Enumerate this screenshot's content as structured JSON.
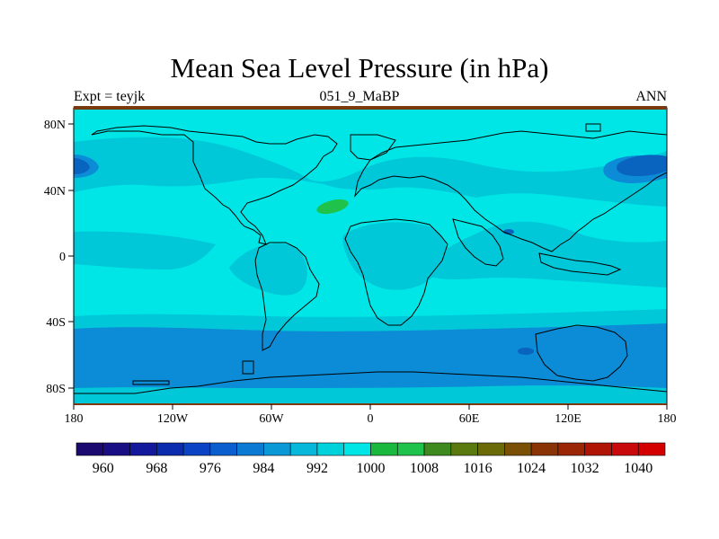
{
  "title": "Mean Sea Level Pressure (in hPa)",
  "subtitle_left": "Expt = teyjk",
  "subtitle_center": "051_9_MaBP",
  "subtitle_right": "ANN",
  "map": {
    "lon_ticks": [
      "180",
      "120W",
      "60W",
      "0",
      "60E",
      "120E",
      "180"
    ],
    "lat_ticks": [
      "80N",
      "40N",
      "0",
      "40S",
      "80S"
    ],
    "lon_range": [
      -180,
      180
    ],
    "lat_range": [
      -90,
      90
    ],
    "colors": {
      "level_992": "#00c8d8",
      "level_1000": "#00e6e6",
      "level_984": "#0c8cd6",
      "level_976": "#0864bf",
      "level_1008": "#1fc24a",
      "coastline": "#000000",
      "frame_top": "#7a3a10"
    }
  },
  "colorbar": {
    "labels": [
      "960",
      "968",
      "976",
      "984",
      "992",
      "1000",
      "1008",
      "1016",
      "1024",
      "1032",
      "1040"
    ],
    "colors": [
      "#1d0a70",
      "#1a0e85",
      "#14189a",
      "#0c2cae",
      "#0a44c4",
      "#0a5ece",
      "#0a7ad2",
      "#0a98d6",
      "#08b8da",
      "#00d2dc",
      "#00e6e6",
      "#1ab83c",
      "#1fc24a",
      "#3e8a1e",
      "#5a7a10",
      "#6a6a06",
      "#7a5006",
      "#8a3406",
      "#9a2606",
      "#b01404",
      "#c80a0a",
      "#d40000"
    ]
  }
}
